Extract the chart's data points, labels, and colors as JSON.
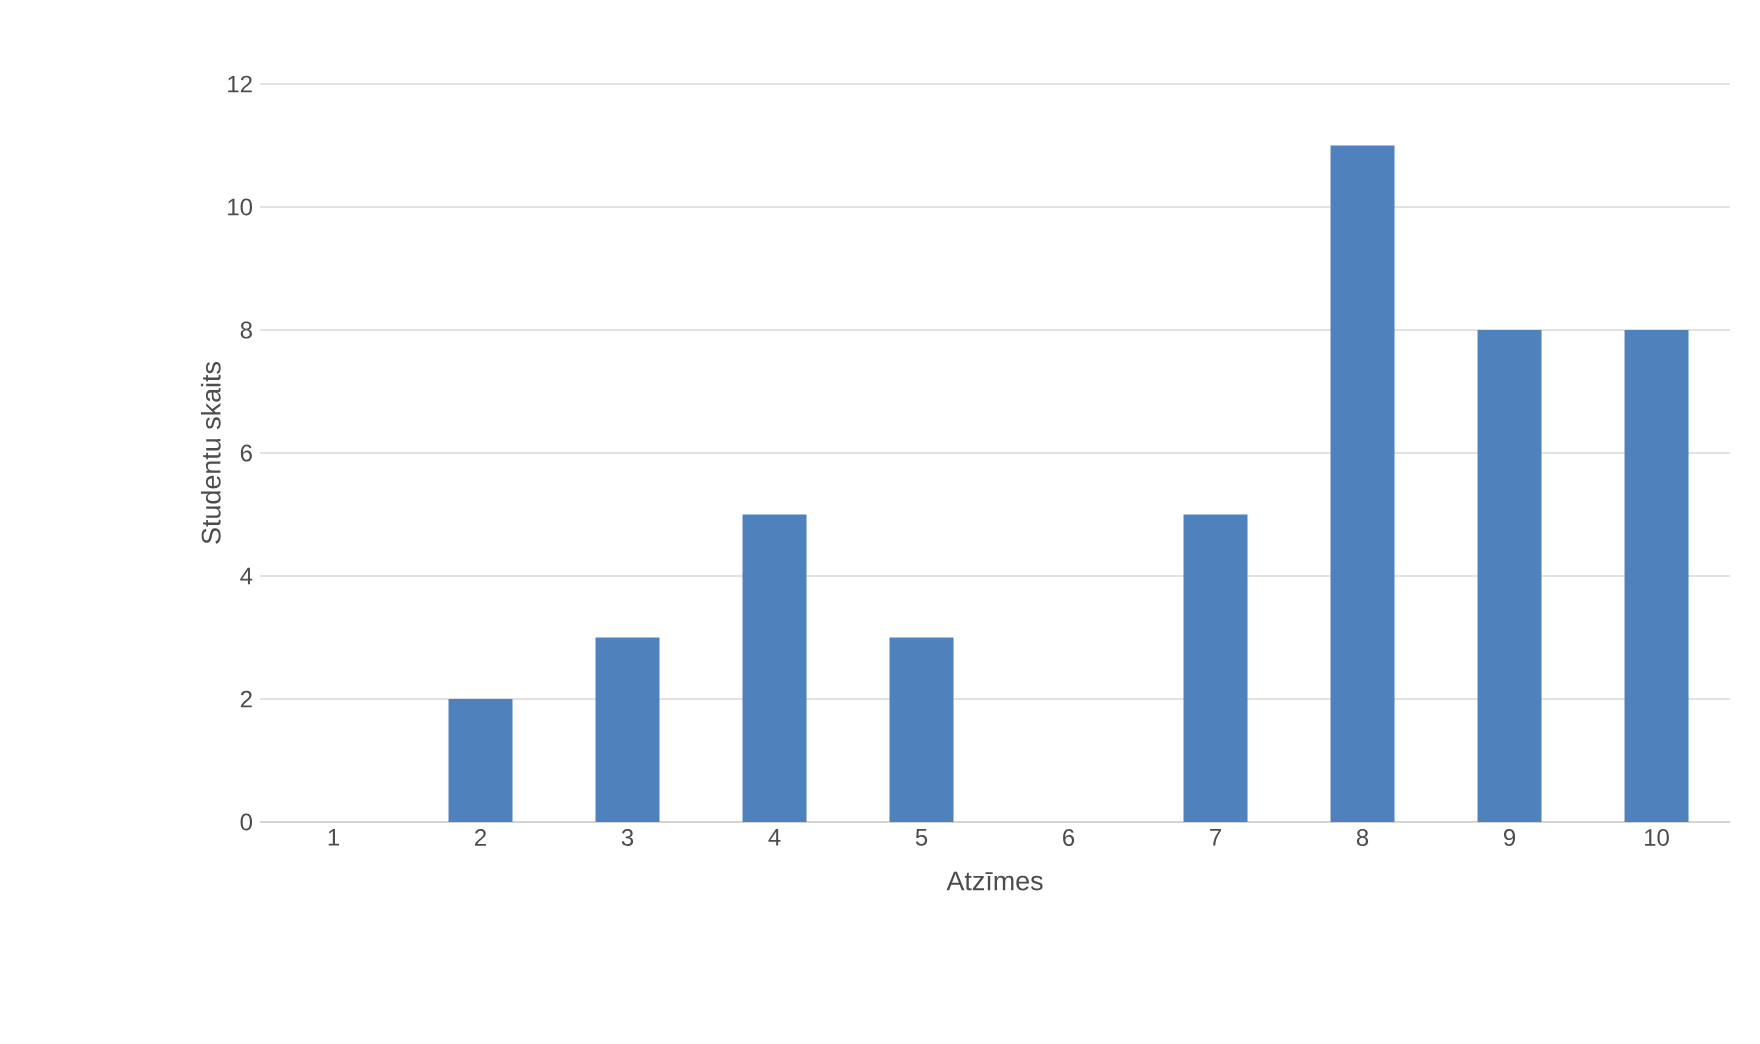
{
  "chart_data": {
    "type": "bar",
    "categories": [
      "1",
      "2",
      "3",
      "4",
      "5",
      "6",
      "7",
      "8",
      "9",
      "10"
    ],
    "values": [
      0,
      2,
      3,
      5,
      3,
      0,
      5,
      11,
      8,
      8
    ],
    "color": "#4f81bd",
    "xlabel": "Atzīmes",
    "ylabel": "Studentu skaits",
    "ylim": [
      0,
      12
    ],
    "yticks": [
      0,
      2,
      4,
      6,
      8,
      10,
      12
    ],
    "grid": "y"
  }
}
